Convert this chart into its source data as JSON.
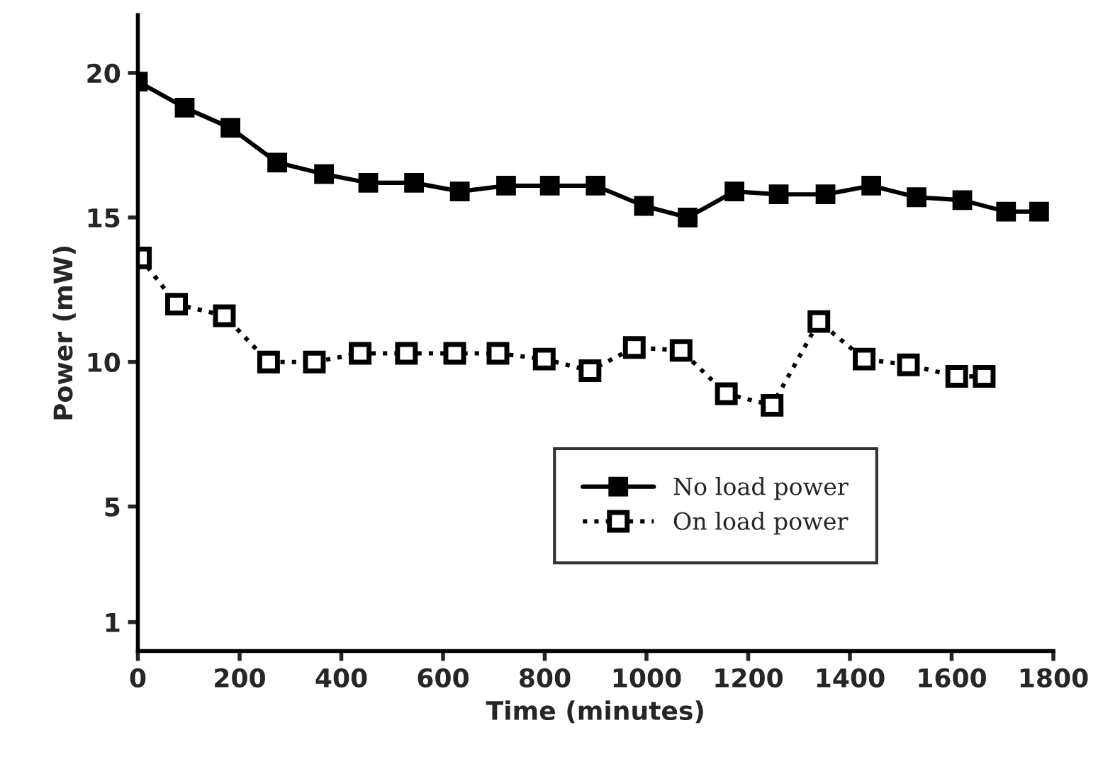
{
  "chart_data": {
    "type": "line",
    "xlabel": "Time (minutes)",
    "ylabel": "Power (mW)",
    "xlim": [
      0,
      1800
    ],
    "xticks": [
      0,
      200,
      400,
      600,
      800,
      1000,
      1200,
      1400,
      1600,
      1800
    ],
    "ylim": [
      0,
      22
    ],
    "yticks": [
      1,
      5,
      10,
      15,
      20
    ],
    "grid": false,
    "legend": "bottom right",
    "marker": "square",
    "series": [
      {
        "name": "No load power",
        "color": "#000000",
        "line_style": "solid",
        "x": [
          0,
          92,
          182,
          274,
          366,
          453,
          543,
          633,
          724,
          810,
          900,
          995,
          1081,
          1173,
          1260,
          1352,
          1442,
          1531,
          1621,
          1707,
          1772
        ],
        "values": [
          19.7,
          18.8,
          18.1,
          16.9,
          16.5,
          16.2,
          16.2,
          15.9,
          16.1,
          16.1,
          16.1,
          15.4,
          15.0,
          15.9,
          15.8,
          15.8,
          16.1,
          15.7,
          15.6,
          15.2,
          15.2
        ]
      },
      {
        "name": "On load power",
        "color": "#000000",
        "line_style": "dotted",
        "x": [
          5,
          76,
          170,
          257,
          347,
          437,
          528,
          623,
          708,
          799,
          889,
          976,
          1068,
          1157,
          1247,
          1339,
          1428,
          1515,
          1610,
          1664
        ],
        "values": [
          13.6,
          12.0,
          11.6,
          10.0,
          10.0,
          10.3,
          10.3,
          10.3,
          10.3,
          10.1,
          9.7,
          10.5,
          10.4,
          8.9,
          8.5,
          11.4,
          10.1,
          9.9,
          9.5,
          9.5
        ]
      }
    ]
  }
}
